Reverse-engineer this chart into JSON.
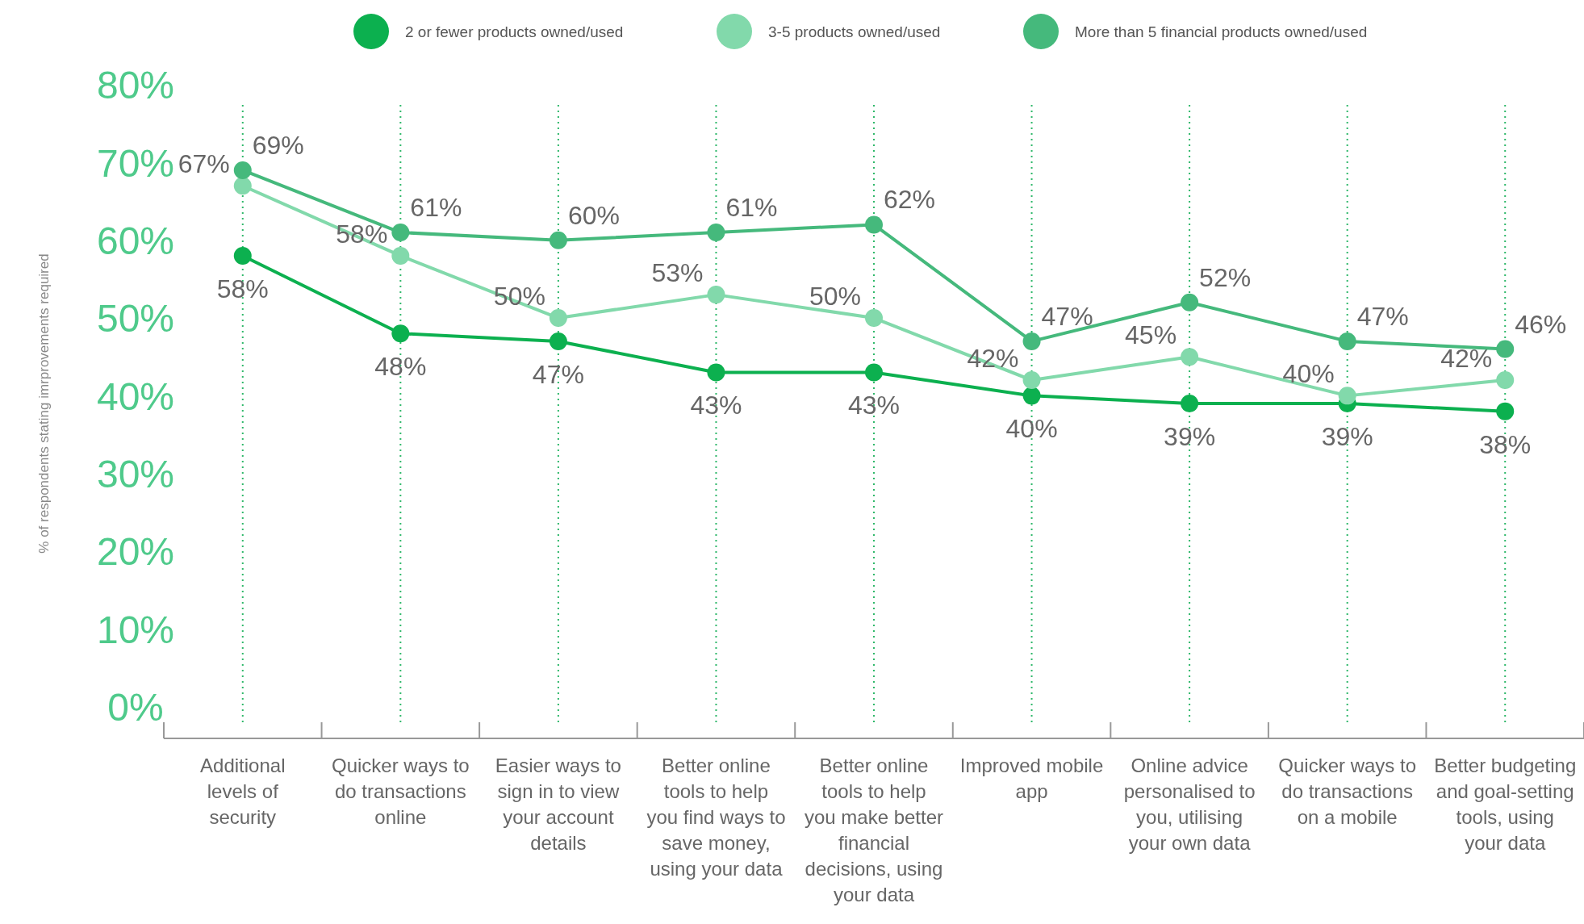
{
  "chart_data": {
    "type": "line",
    "ylabel": "% of respondents stating imrprovements required",
    "categories": [
      "Additional levels of security",
      "Quicker ways to do transactions online",
      "Easier ways to sign in to view your account details",
      "Better online tools to help you find ways to save money, using your data",
      "Better online tools to help you make better financial decisions, using your data",
      "Improved mobile app",
      "Online advice personalised to you, utilising your own data",
      "Quicker ways to do transactions on a mobile",
      "Better budgeting and goal-setting tools, using your data"
    ],
    "series": [
      {
        "name": "2 or fewer products owned/used",
        "color": "#0cb04f",
        "values": [
          58,
          48,
          47,
          43,
          43,
          40,
          39,
          39,
          38
        ],
        "value_labels": [
          "58%",
          "48%",
          "47%",
          "43%",
          "43%",
          "40%",
          "39%",
          "39%",
          "38%"
        ]
      },
      {
        "name": "3-5 products owned/used",
        "color": "#82d9ab",
        "values": [
          67,
          58,
          50,
          53,
          50,
          42,
          45,
          40,
          42
        ],
        "value_labels": [
          "67%",
          "58%",
          "50%",
          "53%",
          "50%",
          "42%",
          "45%",
          "40%",
          "42%"
        ]
      },
      {
        "name": "More than 5 financial products owned/used",
        "color": "#45b97c",
        "values": [
          69,
          61,
          60,
          61,
          62,
          47,
          52,
          47,
          46
        ],
        "value_labels": [
          "69%",
          "61%",
          "60%",
          "61%",
          "62%",
          "47%",
          "52%",
          "47%",
          "46%"
        ]
      }
    ],
    "ylim": [
      -2,
      80
    ],
    "yticks": [
      {
        "value": 0,
        "label": "0%"
      },
      {
        "value": 10,
        "label": "10%"
      },
      {
        "value": 20,
        "label": "20%"
      },
      {
        "value": 30,
        "label": "30%"
      },
      {
        "value": 40,
        "label": "40%"
      },
      {
        "value": 50,
        "label": "50%"
      },
      {
        "value": 60,
        "label": "60%"
      },
      {
        "value": 70,
        "label": "70%"
      },
      {
        "value": 80,
        "label": "80%"
      }
    ],
    "grid": "x",
    "legend": "top",
    "marker": "circle",
    "line_style": "solid"
  }
}
